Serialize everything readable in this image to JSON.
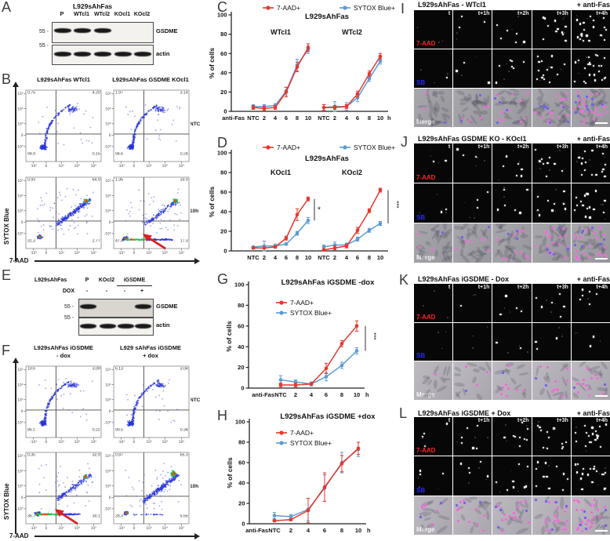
{
  "colors": {
    "red": "#e8372c",
    "blue": "#5b9bd5",
    "arrow": "#dd1f1f"
  },
  "letters": {
    "A": "A",
    "B": "B",
    "C": "C",
    "D": "D",
    "E": "E",
    "F": "F",
    "G": "G",
    "H": "H",
    "I": "I",
    "J": "J",
    "K": "K",
    "L": "L"
  },
  "panels": {
    "A": {
      "title": "L929sAhFas",
      "lanes": [
        "P",
        "WTcl1",
        "WTcl2",
        "KOcl1",
        "KOcl2"
      ],
      "marker": "55 -",
      "blots": [
        {
          "label": "GSDME",
          "bands": [
            1,
            1,
            1,
            0,
            0
          ]
        },
        {
          "label": "actin",
          "bands": [
            1,
            1,
            1,
            1,
            1
          ]
        }
      ]
    },
    "B": {
      "titles": [
        "L929sAhFas WTcl1",
        "L929sAhFas GSDME KOcl1"
      ],
      "row_labels": [
        "NTC",
        "10h"
      ],
      "ylabel": "SYTOX Blue",
      "xlabel": "7-AAD",
      "yticks": [
        "10⁵",
        "10⁴",
        "10³",
        "0",
        "-10³"
      ],
      "xticks": [
        "-10³",
        "0",
        "10³",
        "10⁴",
        "10⁵"
      ],
      "plots": [
        {
          "pattern": "ntc",
          "q": [
            "0.75",
            "4.20",
            "94.9",
            "0.15"
          ],
          "arrow": false
        },
        {
          "pattern": "ntc2",
          "q": [
            "1.97",
            "3.14",
            "94.6",
            "0.24"
          ],
          "arrow": false
        },
        {
          "pattern": "wt10h",
          "q": [
            "0.93",
            "64.9",
            "31.3",
            "2.77"
          ],
          "arrow": false
        },
        {
          "pattern": "ko10h",
          "q": [
            "1.35",
            "33.9",
            "47.4",
            "17.3"
          ],
          "arrow": true
        }
      ]
    },
    "E": {
      "header": {
        "cell_line": "L929sAhFas",
        "lanes": [
          "P",
          "KOcl2",
          "iGSDME"
        ],
        "dox_label": "DOX",
        "dox": [
          "-",
          "-",
          "-",
          "+"
        ]
      },
      "marker": "55 -",
      "blots": [
        {
          "label": "GSDME",
          "bands": [
            1,
            0,
            0,
            1
          ]
        },
        {
          "label": "actin",
          "bands": [
            1,
            1,
            1,
            1
          ]
        }
      ]
    },
    "F": {
      "titles": [
        [
          "L929sAhFas iGSDME",
          "- dox"
        ],
        [
          "L929 sAhFas iGSDME",
          "+ dox"
        ]
      ],
      "row_labels": [
        "NTC",
        "10h"
      ],
      "ylabel": "SYTOX Blue",
      "xlabel": "7-AAD",
      "yticks": [
        "10⁵",
        "10⁴",
        "10³",
        "0",
        "-10³"
      ],
      "xticks": [
        "-10³",
        "0",
        "10³",
        "10⁴",
        "10⁵"
      ],
      "plots": [
        {
          "pattern": "ntc",
          "q": [
            "10.6",
            "3.09",
            "86.1",
            "0.22"
          ],
          "arrow": false
        },
        {
          "pattern": "ntc2",
          "q": [
            "6.13",
            "3.04",
            "90.5",
            "0.34"
          ],
          "arrow": false
        },
        {
          "pattern": "mdox10h",
          "q": [
            "0.35",
            "32.9",
            "36.7",
            "30.1"
          ],
          "arrow": true
        },
        {
          "pattern": "dox10h",
          "q": [
            "0.87",
            "65.3",
            "28.3",
            "5.55"
          ],
          "arrow": false
        }
      ]
    }
  },
  "chart_data": [
    {
      "id": "C",
      "type": "line",
      "title": "L929sAhFas",
      "legend": [
        "7-AAD+",
        "SYTOX Blue+"
      ],
      "ylabel": "% of cells",
      "ylim": [
        0,
        100
      ],
      "yticks": [
        0,
        20,
        40,
        60,
        80,
        100
      ],
      "xlabel_prefix": "anti-Fas",
      "xlabel_suffix": "h",
      "categories": [
        "NTC",
        "2",
        "4",
        "6",
        "8",
        "10"
      ],
      "groups": [
        {
          "label": "WTcl1",
          "sig": "",
          "series": [
            {
              "name": "7-AAD+",
              "values": [
                4,
                3,
                4,
                20,
                46,
                66
              ],
              "errors": [
                2,
                2,
                2,
                5,
                5,
                4
              ]
            },
            {
              "name": "SYTOX Blue+",
              "values": [
                5,
                5,
                6,
                21,
                48,
                64
              ],
              "errors": [
                2,
                2,
                2,
                4,
                6,
                4
              ]
            }
          ]
        },
        {
          "label": "WTcl2",
          "sig": "",
          "series": [
            {
              "name": "7-AAD+",
              "values": [
                4,
                4,
                5,
                18,
                39,
                57
              ],
              "errors": [
                3,
                2,
                2,
                3,
                3,
                3
              ]
            },
            {
              "name": "SYTOX Blue+",
              "values": [
                4,
                5,
                5,
                14,
                34,
                52
              ],
              "errors": [
                3,
                5,
                4,
                4,
                3,
                3
              ]
            }
          ]
        }
      ]
    },
    {
      "id": "D",
      "type": "line",
      "title": "L929sAhFas",
      "legend": [
        "7-AAD+",
        "SYTOX Blue+"
      ],
      "ylabel": "% of cells",
      "ylim": [
        0,
        100
      ],
      "yticks": [
        0,
        20,
        40,
        60,
        80,
        100
      ],
      "xlabel_prefix": "",
      "xlabel_suffix": "",
      "categories": [
        "NTC",
        "2",
        "4",
        "6",
        "8",
        "10"
      ],
      "groups": [
        {
          "label": "KOcl1",
          "sig": "*",
          "series": [
            {
              "name": "7-AAD+",
              "values": [
                3,
                3,
                4,
                13,
                37,
                53
              ],
              "errors": [
                1,
                1,
                1,
                2,
                6,
                2
              ]
            },
            {
              "name": "SYTOX Blue+",
              "values": [
                4,
                5,
                5,
                7,
                18,
                31
              ],
              "errors": [
                1,
                5,
                2,
                1,
                2,
                3
              ]
            }
          ]
        },
        {
          "label": "KOcl2",
          "sig": "***",
          "series": [
            {
              "name": "7-AAD+",
              "values": [
                1,
                3,
                5,
                21,
                41,
                62
              ],
              "errors": [
                1,
                2,
                2,
                3,
                2,
                2
              ]
            },
            {
              "name": "SYTOX Blue+",
              "values": [
                4,
                6,
                6,
                12,
                21,
                28
              ],
              "errors": [
                2,
                3,
                2,
                2,
                2,
                2
              ]
            }
          ]
        }
      ]
    },
    {
      "id": "G",
      "type": "line",
      "title": "L929sAhFas iGSDME -dox",
      "legend": [
        "7-AAD+",
        "SYTOX Blue+"
      ],
      "ylabel": "% of cells",
      "ylim": [
        0,
        100
      ],
      "yticks": [
        0,
        20,
        40,
        60,
        80,
        100
      ],
      "xlabel_prefix": "anti-Fas",
      "xlabel_suffix": "h",
      "categories": [
        "NTC",
        "2",
        "4",
        "6",
        "8",
        "10"
      ],
      "groups": [
        {
          "label": "",
          "sig": "***",
          "series": [
            {
              "name": "7-AAD+",
              "values": [
                3,
                3,
                4,
                19,
                43,
                60
              ],
              "errors": [
                2,
                2,
                1,
                5,
                3,
                5
              ]
            },
            {
              "name": "SYTOX Blue+",
              "values": [
                8,
                6,
                4,
                11,
                22,
                36
              ],
              "errors": [
                4,
                2,
                2,
                4,
                3,
                3
              ]
            }
          ]
        }
      ]
    },
    {
      "id": "H",
      "type": "line",
      "title": "L929sAhFas iGSDME +dox",
      "legend": [
        "7-AAD+",
        "SYTOX Blue+"
      ],
      "ylabel": "% of cells",
      "ylim": [
        0,
        100
      ],
      "yticks": [
        0,
        20,
        40,
        60,
        80,
        100
      ],
      "xlabel_prefix": "anti-Fas",
      "xlabel_suffix": "h",
      "categories": [
        "NTC",
        "2",
        "4",
        "6",
        "8",
        "10"
      ],
      "groups": [
        {
          "label": "",
          "sig": "",
          "series": [
            {
              "name": "7-AAD+",
              "values": [
                3,
                4,
                13,
                36,
                59,
                74
              ],
              "errors": [
                1,
                1,
                12,
                14,
                8,
                6
              ]
            },
            {
              "name": "SYTOX Blue+",
              "values": [
                8,
                7,
                14,
                35,
                60,
                73
              ],
              "errors": [
                3,
                2,
                11,
                13,
                10,
                7
              ]
            }
          ]
        }
      ]
    }
  ],
  "microscopy": [
    {
      "id": "I",
      "title": "L929sAhFas - WTcl1",
      "treatment": "+ anti-Fas",
      "times": [
        "t",
        "t+1h",
        "t+2h",
        "t+3h",
        "t+4h"
      ],
      "channels": [
        "7-AAD",
        "SB",
        "Merge"
      ],
      "confluent": true,
      "dots": {
        "ch1": [
          0,
          3,
          6,
          12,
          20
        ],
        "ch2": [
          1,
          3,
          7,
          14,
          24
        ],
        "pink": [
          2,
          5,
          10,
          16,
          24
        ],
        "blue": [
          1,
          2,
          4,
          7,
          9
        ]
      }
    },
    {
      "id": "J",
      "title": "L929sAhFas GSDME KO - KOcl1",
      "treatment": "+ anti-Fas",
      "times": [
        "t",
        "t+1h",
        "t+2h",
        "t+3h",
        "t+4h"
      ],
      "channels": [
        "7-AAD",
        "SB",
        "Merge"
      ],
      "confluent": true,
      "dots": {
        "ch1": [
          2,
          3,
          6,
          10,
          16
        ],
        "ch2": [
          2,
          3,
          6,
          10,
          16
        ],
        "pink": [
          3,
          6,
          10,
          16,
          22
        ],
        "blue": [
          1,
          2,
          3,
          5,
          7
        ]
      }
    },
    {
      "id": "K",
      "title": "L929sAhFas iGSDME - Dox",
      "treatment": "+ anti-Fas",
      "times": [
        "t",
        "t+1h",
        "t+2h",
        "t+3h",
        "t+4h"
      ],
      "channels": [
        "7-AAD",
        "SB",
        "Merge"
      ],
      "confluent": false,
      "dots": {
        "ch1": [
          0,
          1,
          4,
          6,
          6
        ],
        "ch2": [
          0,
          0,
          2,
          3,
          2
        ],
        "pink": [
          1,
          3,
          8,
          10,
          12
        ],
        "blue": [
          0,
          1,
          1,
          2,
          2
        ]
      }
    },
    {
      "id": "L",
      "title": "L929sAhFas iGSDME + Dox",
      "treatment": "+ anti-Fas",
      "times": [
        "t",
        "t+1h",
        "t+2h",
        "t+3h",
        "t+4h"
      ],
      "channels": [
        "7-AAD",
        "SB",
        "Merge"
      ],
      "confluent": false,
      "dots": {
        "ch1": [
          4,
          6,
          9,
          12,
          18
        ],
        "ch2": [
          3,
          5,
          8,
          12,
          18
        ],
        "pink": [
          6,
          10,
          14,
          18,
          26
        ],
        "blue": [
          2,
          3,
          4,
          5,
          6
        ]
      }
    }
  ]
}
